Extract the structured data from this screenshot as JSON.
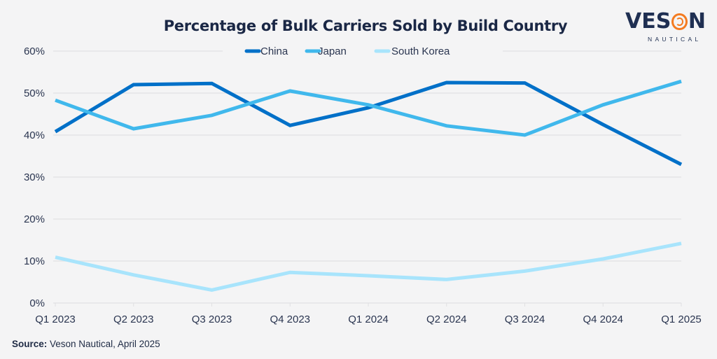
{
  "header": {
    "title": "Percentage of Bulk Carriers Sold by Build Country"
  },
  "logo": {
    "wordmark_left": "VES",
    "wordmark_o": "O",
    "wordmark_right": "N",
    "subtitle": "NAUTICAL",
    "accent_color": "#f47b20"
  },
  "footer": {
    "source_label": "Source:",
    "source_text": " Veson Nautical, April 2025"
  },
  "chart_data": {
    "type": "line",
    "title": "Percentage of Bulk Carriers Sold by Build Country",
    "xlabel": "",
    "ylabel": "",
    "categories": [
      "Q1 2023",
      "Q2 2023",
      "Q3 2023",
      "Q4 2023",
      "Q1 2024",
      "Q2 2024",
      "Q3 2024",
      "Q4 2024",
      "Q1 2025"
    ],
    "ylim": [
      0,
      60
    ],
    "yticks": [
      0,
      10,
      20,
      30,
      40,
      50,
      60
    ],
    "ytick_labels": [
      "0%",
      "10%",
      "20%",
      "30%",
      "40%",
      "50%",
      "60%"
    ],
    "grid": true,
    "legend_position": "top-center",
    "series": [
      {
        "name": "China",
        "color": "#0070c8",
        "values": [
          40.8,
          52.0,
          52.3,
          42.3,
          46.5,
          52.5,
          52.4,
          42.5,
          33.0
        ]
      },
      {
        "name": "Japan",
        "color": "#40b8ec",
        "values": [
          48.3,
          41.5,
          44.7,
          50.5,
          47.2,
          42.2,
          40.0,
          47.2,
          52.8
        ]
      },
      {
        "name": "South Korea",
        "color": "#a8e4fc",
        "values": [
          10.9,
          6.7,
          3.1,
          7.3,
          6.5,
          5.6,
          7.6,
          10.5,
          14.2
        ]
      }
    ]
  }
}
